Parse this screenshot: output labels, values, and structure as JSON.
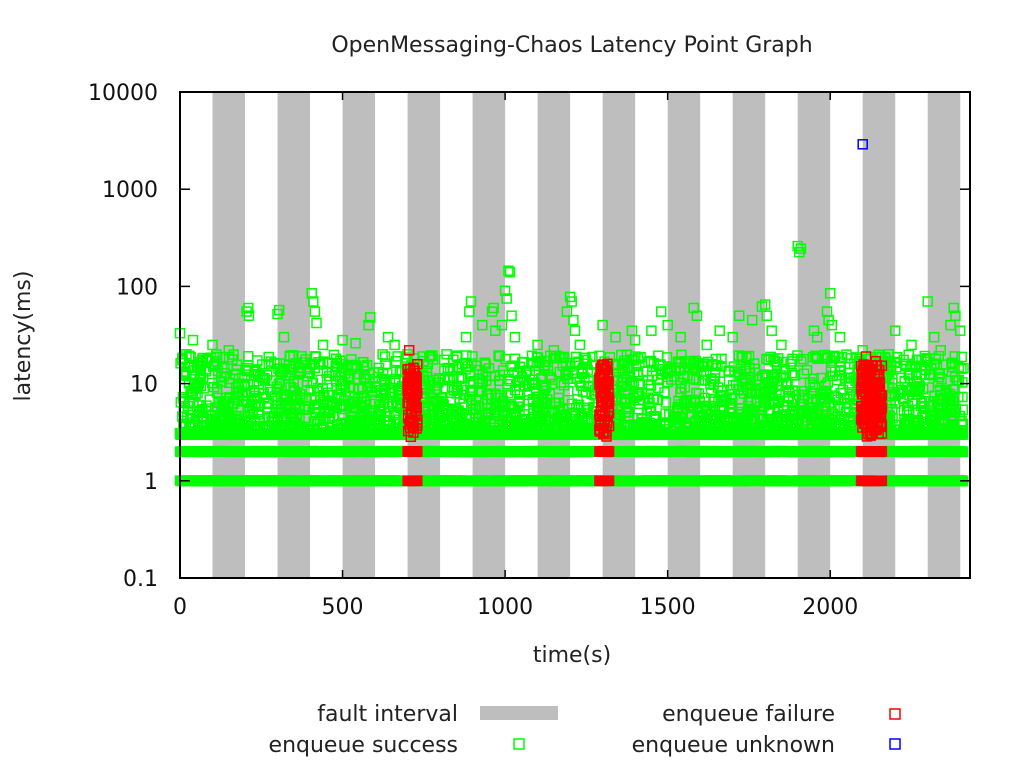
{
  "chart_data": {
    "type": "scatter",
    "title": "OpenMessaging-Chaos Latency Point Graph",
    "xlabel": "time(s)",
    "ylabel": "latency(ms)",
    "xlim": [
      0,
      2430
    ],
    "ylim": [
      0.1,
      10000
    ],
    "yscale": "log",
    "grid": false,
    "x_ticks": [
      0,
      500,
      1000,
      1500,
      2000
    ],
    "x_tick_labels": [
      "0",
      "500",
      "1000",
      "1500",
      "2000"
    ],
    "y_ticks": [
      0.1,
      1,
      10,
      100,
      1000,
      10000
    ],
    "y_tick_labels": [
      "0.1",
      "1",
      "10",
      "100",
      "1000",
      "10000"
    ],
    "legend_position": "bottom",
    "fault_intervals": [
      [
        100,
        200
      ],
      [
        300,
        400
      ],
      [
        500,
        600
      ],
      [
        700,
        800
      ],
      [
        900,
        1000
      ],
      [
        1100,
        1200
      ],
      [
        1300,
        1400
      ],
      [
        1500,
        1600
      ],
      [
        1700,
        1800
      ],
      [
        1900,
        2000
      ],
      [
        2100,
        2200
      ],
      [
        2300,
        2400
      ]
    ],
    "series": [
      {
        "name": "fault interval",
        "kind": "band",
        "color": "#bebebe"
      },
      {
        "name": "enqueue success",
        "kind": "points",
        "color": "#00ff00",
        "baseline_levels": [
          1,
          2,
          3
        ],
        "x_range": [
          0,
          2410
        ],
        "typical_range": [
          3,
          20
        ],
        "points": [
          [
            0,
            33
          ],
          [
            20,
            20
          ],
          [
            40,
            28
          ],
          [
            100,
            25
          ],
          [
            150,
            22
          ],
          [
            205,
            55
          ],
          [
            210,
            60
          ],
          [
            212,
            50
          ],
          [
            300,
            52
          ],
          [
            305,
            57
          ],
          [
            320,
            30
          ],
          [
            405,
            85
          ],
          [
            410,
            70
          ],
          [
            415,
            55
          ],
          [
            420,
            42
          ],
          [
            440,
            25
          ],
          [
            500,
            28
          ],
          [
            540,
            26
          ],
          [
            580,
            40
          ],
          [
            585,
            48
          ],
          [
            640,
            30
          ],
          [
            660,
            25
          ],
          [
            700,
            20
          ],
          [
            820,
            20
          ],
          [
            880,
            30
          ],
          [
            890,
            55
          ],
          [
            895,
            70
          ],
          [
            930,
            40
          ],
          [
            960,
            55
          ],
          [
            965,
            60
          ],
          [
            970,
            35
          ],
          [
            990,
            40
          ],
          [
            1000,
            90
          ],
          [
            1005,
            75
          ],
          [
            1010,
            145
          ],
          [
            1015,
            140
          ],
          [
            1020,
            50
          ],
          [
            1030,
            30
          ],
          [
            1100,
            25
          ],
          [
            1150,
            22
          ],
          [
            1190,
            55
          ],
          [
            1200,
            78
          ],
          [
            1205,
            70
          ],
          [
            1210,
            45
          ],
          [
            1215,
            35
          ],
          [
            1230,
            25
          ],
          [
            1300,
            40
          ],
          [
            1340,
            30
          ],
          [
            1390,
            35
          ],
          [
            1400,
            28
          ],
          [
            1450,
            35
          ],
          [
            1480,
            55
          ],
          [
            1500,
            40
          ],
          [
            1540,
            30
          ],
          [
            1580,
            60
          ],
          [
            1590,
            50
          ],
          [
            1620,
            25
          ],
          [
            1660,
            35
          ],
          [
            1700,
            30
          ],
          [
            1720,
            50
          ],
          [
            1760,
            45
          ],
          [
            1790,
            62
          ],
          [
            1800,
            65
          ],
          [
            1805,
            50
          ],
          [
            1820,
            35
          ],
          [
            1850,
            25
          ],
          [
            1900,
            260
          ],
          [
            1905,
            225
          ],
          [
            1910,
            245
          ],
          [
            1950,
            35
          ],
          [
            1960,
            30
          ],
          [
            1990,
            55
          ],
          [
            1995,
            45
          ],
          [
            2000,
            85
          ],
          [
            2005,
            40
          ],
          [
            2030,
            30
          ],
          [
            2100,
            22
          ],
          [
            2180,
            20
          ],
          [
            2200,
            35
          ],
          [
            2250,
            25
          ],
          [
            2300,
            70
          ],
          [
            2320,
            30
          ],
          [
            2340,
            22
          ],
          [
            2370,
            40
          ],
          [
            2380,
            60
          ],
          [
            2385,
            50
          ],
          [
            2400,
            35
          ]
        ]
      },
      {
        "name": "enqueue failure",
        "kind": "points",
        "color": "#ff0000",
        "clusters": [
          [
            700,
            730
          ],
          [
            1290,
            1320
          ],
          [
            2095,
            2160
          ]
        ],
        "points": [
          [
            705,
            22
          ],
          [
            1315,
            16
          ],
          [
            2110,
            19
          ],
          [
            2140,
            17
          ]
        ]
      },
      {
        "name": "enqueue unknown",
        "kind": "points",
        "color": "#0000ff",
        "points": [
          [
            2100,
            2900
          ]
        ]
      }
    ]
  }
}
